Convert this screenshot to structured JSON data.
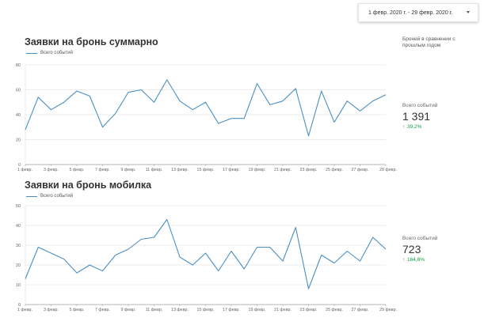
{
  "date_range": {
    "label": "1 февр. 2020 г. - 29 февр. 2020 г."
  },
  "compare_note": "Броней в сравнении с прошлым годом",
  "colors": {
    "series": "#4a90c2",
    "grid": "#e6e6e6",
    "axis": "#9e9e9e",
    "positive": "#0c9d3b"
  },
  "icons": {
    "dropdown": "chevron-down-icon",
    "delta": "arrow-up-icon"
  },
  "scorecards": [
    {
      "label": "Всего событий",
      "value": "1 391",
      "delta": "39,2%"
    },
    {
      "label": "Всего событий",
      "value": "723",
      "delta": "164,8%"
    }
  ],
  "chart_data": [
    {
      "type": "line",
      "title": "Заявки на бронь суммарно",
      "legend": "top-left",
      "grid": true,
      "x": [
        "1 февр.",
        "2 февр.",
        "3 февр.",
        "4 февр.",
        "5 февр.",
        "6 февр.",
        "7 февр.",
        "8 февр.",
        "9 февр.",
        "10 февр.",
        "11 февр.",
        "12 февр.",
        "13 февр.",
        "14 февр.",
        "15 февр.",
        "16 февр.",
        "17 февр.",
        "18 февр.",
        "19 февр.",
        "20 февр.",
        "21 февр.",
        "22 февр.",
        "23 февр.",
        "24 февр.",
        "25 февр.",
        "26 февр.",
        "27 февр.",
        "28 февр.",
        "29 февр."
      ],
      "xticks": [
        "1 февр.",
        "3 февр.",
        "5 февр.",
        "7 февр.",
        "9 февр.",
        "11 февр.",
        "13 февр.",
        "15 февр.",
        "17 февр.",
        "19 февр.",
        "21 февр.",
        "23 февр.",
        "25 февр.",
        "27 февр.",
        "29 февр."
      ],
      "series": [
        {
          "name": "Всего событий",
          "values": [
            28,
            54,
            44,
            50,
            59,
            55,
            30,
            41,
            58,
            60,
            50,
            68,
            51,
            44,
            50,
            33,
            37,
            37,
            65,
            48,
            51,
            61,
            23,
            59,
            34,
            51,
            43,
            51,
            56
          ]
        }
      ],
      "yticks": [
        0,
        20,
        40,
        60,
        80
      ],
      "ylim": [
        0,
        80
      ]
    },
    {
      "type": "line",
      "title": "Заявки на бронь мобилка",
      "legend": "top-left",
      "grid": true,
      "x": [
        "1 февр.",
        "2 февр.",
        "3 февр.",
        "4 февр.",
        "5 февр.",
        "6 февр.",
        "7 февр.",
        "8 февр.",
        "9 февр.",
        "10 февр.",
        "11 февр.",
        "12 февр.",
        "13 февр.",
        "14 февр.",
        "15 февр.",
        "16 февр.",
        "17 февр.",
        "18 февр.",
        "19 февр.",
        "20 февр.",
        "21 февр.",
        "22 февр.",
        "23 февр.",
        "24 февр.",
        "25 февр.",
        "26 февр.",
        "27 февр.",
        "28 февр.",
        "29 февр."
      ],
      "xticks": [
        "1 февр.",
        "3 февр.",
        "5 февр.",
        "7 февр.",
        "9 февр.",
        "11 февр.",
        "13 февр.",
        "15 февр.",
        "17 февр.",
        "19 февр.",
        "21 февр.",
        "23 февр.",
        "25 февр.",
        "27 февр.",
        "29 февр."
      ],
      "series": [
        {
          "name": "Всего событий",
          "values": [
            13,
            29,
            26,
            23,
            16,
            20,
            17,
            25,
            28,
            33,
            34,
            43,
            24,
            20,
            26,
            17,
            27,
            18,
            29,
            29,
            22,
            39,
            8,
            25,
            21,
            27,
            22,
            34,
            28
          ]
        }
      ],
      "yticks": [
        0,
        10,
        20,
        30,
        40,
        50
      ],
      "ylim": [
        0,
        50
      ]
    }
  ]
}
